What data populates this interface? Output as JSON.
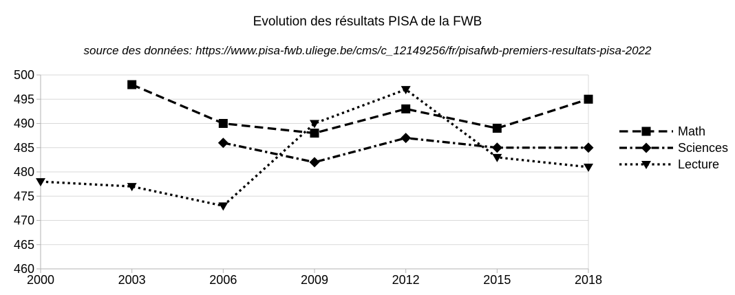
{
  "chart": {
    "title": "Evolution des résultats PISA de la FWB",
    "subtitle": "source des données: https://www.pisa-fwb.uliege.be/cms/c_12149256/fr/pisafwb-premiers-resultats-pisa-2022"
  },
  "colors": {
    "series": "#000000",
    "grid": "#d9d9d9",
    "axis": "#b3b3b3",
    "text": "#000000",
    "background": "#ffffff"
  },
  "chart_data": {
    "type": "line",
    "title": "Evolution des résultats PISA de la FWB",
    "subtitle": "source des données: https://www.pisa-fwb.uliege.be/cms/c_12149256/fr/pisafwb-premiers-resultats-pisa-2022",
    "categories": [
      "2000",
      "2003",
      "2006",
      "2009",
      "2012",
      "2015",
      "2018"
    ],
    "series": [
      {
        "name": "Math",
        "marker": "square",
        "line_style": "dash",
        "values": [
          null,
          498,
          490,
          488,
          493,
          489,
          495
        ]
      },
      {
        "name": "Sciences",
        "marker": "diamond",
        "line_style": "dashdot",
        "values": [
          null,
          null,
          486,
          482,
          487,
          485,
          485
        ]
      },
      {
        "name": "Lecture",
        "marker": "triangle-down",
        "line_style": "dot",
        "values": [
          478,
          477,
          473,
          490,
          497,
          483,
          481
        ]
      }
    ],
    "xlabel": "",
    "ylabel": "",
    "ylim": [
      460,
      500
    ],
    "yticks": [
      460,
      465,
      470,
      475,
      480,
      485,
      490,
      495,
      500
    ],
    "grid": "horizontal",
    "legend_position": "right"
  }
}
